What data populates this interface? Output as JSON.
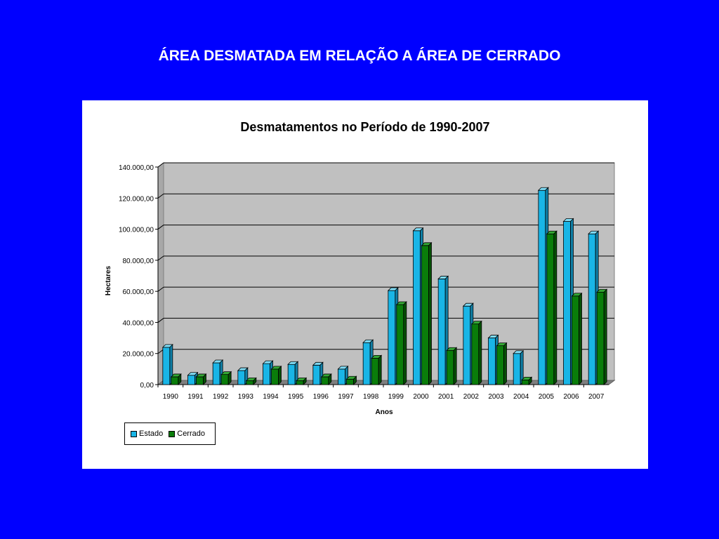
{
  "slide": {
    "title": "ÁREA DESMATADA EM RELAÇÃO A ÁREA DE CERRADO"
  },
  "colors": {
    "background": "#0000ff",
    "plot_area": "#c0c0c0",
    "estado": "#19b5e6",
    "cerrado": "#0a7d0a"
  },
  "chart_data": {
    "type": "bar",
    "title": "Desmatamentos no Período de 1990-2007",
    "xlabel": "Anos",
    "ylabel": "Hectares",
    "ylim": [
      0,
      140000
    ],
    "yticks": [
      "0,00",
      "20.000,00",
      "40.000,00",
      "60.000,00",
      "80.000,00",
      "100.000,00",
      "120.000,00",
      "140.000,00"
    ],
    "categories": [
      "1990",
      "1991",
      "1992",
      "1993",
      "1994",
      "1995",
      "1996",
      "1997",
      "1998",
      "1999",
      "2000",
      "2001",
      "2002",
      "2003",
      "2004",
      "2005",
      "2006",
      "2007"
    ],
    "series": [
      {
        "name": "Estado",
        "values": [
          24000,
          6000,
          14000,
          9000,
          13500,
          13000,
          12500,
          10000,
          27000,
          60500,
          99000,
          68000,
          50500,
          30000,
          20000,
          125000,
          105000,
          97000
        ]
      },
      {
        "name": "Cerrado",
        "values": [
          5000,
          5000,
          6500,
          2500,
          10000,
          2500,
          5000,
          3500,
          17000,
          51500,
          89500,
          22000,
          39000,
          25000,
          3000,
          97000,
          57000,
          59500
        ]
      }
    ],
    "grid": true,
    "legend": "bottom-left"
  }
}
